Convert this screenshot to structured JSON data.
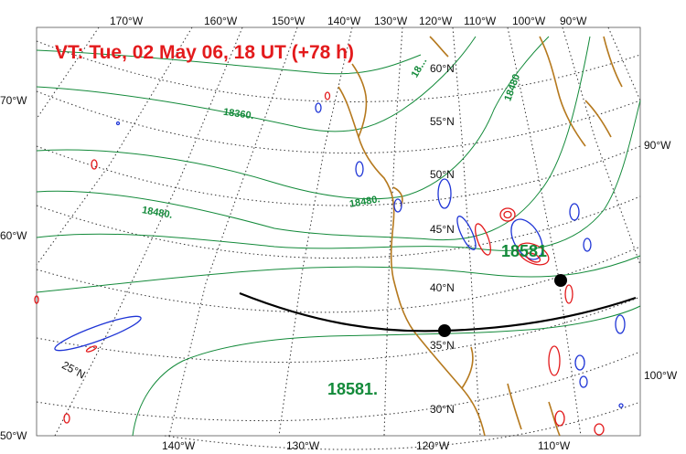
{
  "title": "VT:  Tue, 02 May 06, 18 UT (+78 h)",
  "colors": {
    "title": "#e31a1c",
    "contour": "#138a3a",
    "coast": "#b5791e",
    "positive": "#e31a1c",
    "negative": "#1f35d6",
    "grid": "#333333",
    "track": "#000000"
  },
  "top_lon_labels": [
    "170°W",
    "160°W",
    "150°W",
    "140°W",
    "130°W",
    "120°W",
    "110°W",
    "100°W",
    "90°W"
  ],
  "bottom_lon_labels": [
    "140°W",
    "130°W",
    "120°W",
    "110°W"
  ],
  "left_labels": [
    "70°W",
    "60°W",
    "50°W"
  ],
  "right_labels": [
    "90°W",
    "100°W"
  ],
  "inner_lat_labels": [
    "60°N",
    "55°N",
    "50°N",
    "45°N",
    "40°N",
    "35°N",
    "30°N",
    "25°N"
  ],
  "contour_labels": [
    "18360.",
    "18480.",
    "18480.",
    "18480",
    "18…",
    "18581."
  ],
  "large_labels": [
    "18581.",
    "18581"
  ],
  "track": {
    "points": 2
  }
}
